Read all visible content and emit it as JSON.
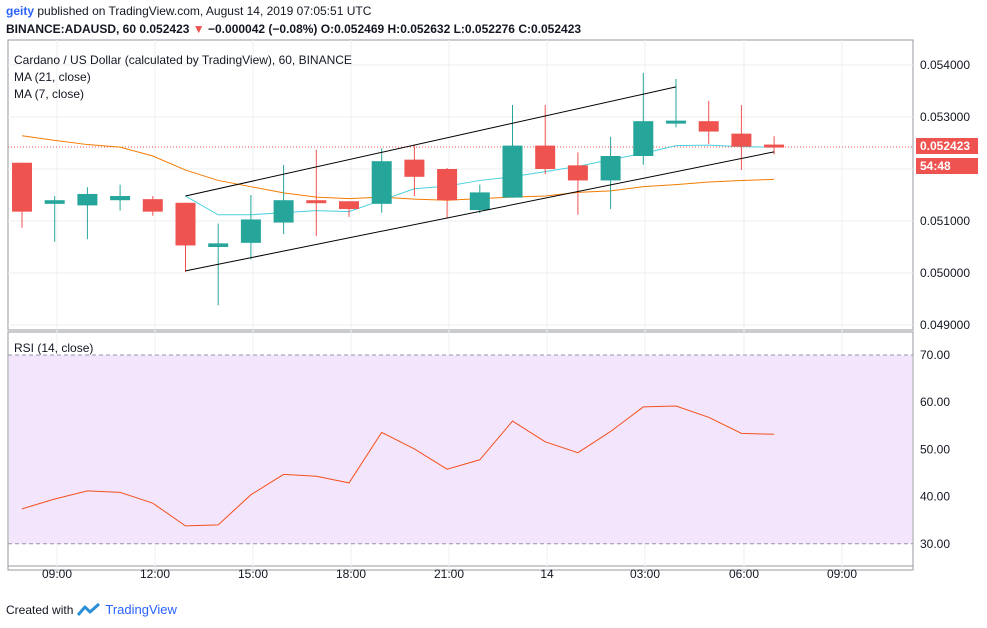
{
  "header": {
    "publisher": "geity",
    "published_text": "published on TradingView.com, August 14, 2019 07:05:51 UTC",
    "symbol": "BINANCE:ADAUSD, 60",
    "last": "0.052423",
    "change_arrow": "▼",
    "change": "−0.000042 (−0.08%)",
    "o_label": "O:",
    "o": "0.052469",
    "h_label": "H:",
    "h": "0.052632",
    "l_label": "L:",
    "l": "0.052276",
    "c_label": "C:",
    "c": "0.052423"
  },
  "legend": {
    "title": "Cardano / US Dollar (calculated by TradingView), 60, BINANCE",
    "ma21": "MA (21, close)",
    "ma7": "MA (7, close)"
  },
  "rsi_label": "RSI (14, close)",
  "price_tag": "0.052423",
  "countdown_tag": "54:48",
  "colors": {
    "up": "#26a69a",
    "down": "#ef5350",
    "ma21": "#f57c00",
    "ma7": "#4dd0e1",
    "rsi_line": "#f4511e",
    "rsi_band": "#f3e5fb",
    "axis_text": "#131722",
    "channel": "#000000"
  },
  "footer": {
    "created_with": "Created with",
    "brand": "TradingView"
  },
  "chart_data": [
    {
      "type": "candlestick",
      "title": "Cardano / US Dollar (calculated by TradingView), 60, BINANCE",
      "x_ticks": [
        "09:00",
        "12:00",
        "15:00",
        "18:00",
        "21:00",
        "14",
        "03:00",
        "06:00",
        "09:00"
      ],
      "y_ticks": [
        "0.054000",
        "0.053000",
        "0.051000",
        "0.050000",
        "0.049000"
      ],
      "ylim": [
        0.0487,
        0.0544
      ],
      "last_price": 0.052423,
      "candles": [
        {
          "o": 0.05212,
          "h": 0.05212,
          "l": 0.05087,
          "c": 0.05118
        },
        {
          "o": 0.05133,
          "h": 0.05148,
          "l": 0.0506,
          "c": 0.0514
        },
        {
          "o": 0.0513,
          "h": 0.05165,
          "l": 0.05065,
          "c": 0.05152
        },
        {
          "o": 0.0514,
          "h": 0.0517,
          "l": 0.0512,
          "c": 0.05148
        },
        {
          "o": 0.05142,
          "h": 0.05148,
          "l": 0.0511,
          "c": 0.05118
        },
        {
          "o": 0.05135,
          "h": 0.05135,
          "l": 0.05002,
          "c": 0.05053
        },
        {
          "o": 0.0505,
          "h": 0.05095,
          "l": 0.04938,
          "c": 0.05057
        },
        {
          "o": 0.05058,
          "h": 0.0515,
          "l": 0.05026,
          "c": 0.05103
        },
        {
          "o": 0.05097,
          "h": 0.05208,
          "l": 0.05075,
          "c": 0.0514
        },
        {
          "o": 0.0514,
          "h": 0.05237,
          "l": 0.05071,
          "c": 0.05135
        },
        {
          "o": 0.05138,
          "h": 0.05138,
          "l": 0.05108,
          "c": 0.05123
        },
        {
          "o": 0.05133,
          "h": 0.0524,
          "l": 0.05116,
          "c": 0.05215
        },
        {
          "o": 0.05218,
          "h": 0.05247,
          "l": 0.05148,
          "c": 0.05185
        },
        {
          "o": 0.052,
          "h": 0.05202,
          "l": 0.05105,
          "c": 0.0514
        },
        {
          "o": 0.05121,
          "h": 0.0517,
          "l": 0.05115,
          "c": 0.05155
        },
        {
          "o": 0.05145,
          "h": 0.05323,
          "l": 0.05145,
          "c": 0.05245
        },
        {
          "o": 0.05245,
          "h": 0.05323,
          "l": 0.0519,
          "c": 0.052
        },
        {
          "o": 0.05207,
          "h": 0.05232,
          "l": 0.05112,
          "c": 0.05178
        },
        {
          "o": 0.05178,
          "h": 0.05262,
          "l": 0.05123,
          "c": 0.05225
        },
        {
          "o": 0.05225,
          "h": 0.05385,
          "l": 0.05208,
          "c": 0.05292
        },
        {
          "o": 0.05293,
          "h": 0.05373,
          "l": 0.0528,
          "c": 0.05293
        },
        {
          "o": 0.05292,
          "h": 0.05331,
          "l": 0.05248,
          "c": 0.05272
        },
        {
          "o": 0.05268,
          "h": 0.05323,
          "l": 0.05198,
          "c": 0.05243
        },
        {
          "o": 0.05247,
          "h": 0.05263,
          "l": 0.05228,
          "c": 0.05242
        }
      ],
      "ma21": [
        0.05264,
        0.05255,
        0.05247,
        0.05242,
        0.05225,
        0.05198,
        0.05178,
        0.05166,
        0.05154,
        0.05146,
        0.05143,
        0.05146,
        0.05142,
        0.0514,
        0.05143,
        0.05146,
        0.05148,
        0.05155,
        0.05158,
        0.05166,
        0.0517,
        0.05175,
        0.05178,
        0.0518
      ],
      "ma7": [
        null,
        null,
        null,
        null,
        null,
        0.05148,
        0.05112,
        0.05112,
        0.05116,
        0.0512,
        0.05118,
        0.0514,
        0.05162,
        0.05167,
        0.05178,
        0.05185,
        0.05195,
        0.05205,
        0.05218,
        0.0523,
        0.05245,
        0.05246,
        0.05243,
        0.05242
      ],
      "channel": [
        {
          "from": [
            5,
            0.05148
          ],
          "to": [
            20,
            0.05358
          ]
        },
        {
          "from": [
            5,
            0.05004
          ],
          "to": [
            23,
            0.05233
          ]
        }
      ]
    },
    {
      "type": "line",
      "title": "RSI (14, close)",
      "y_ticks": [
        "70.00",
        "60.00",
        "50.00",
        "40.00",
        "30.00"
      ],
      "ylim": [
        26,
        73
      ],
      "band": [
        30,
        70
      ],
      "series": [
        {
          "values": [
            37.4,
            39.5,
            41.2,
            40.9,
            38.6,
            33.8,
            34.0,
            40.4,
            44.7,
            44.3,
            42.9,
            53.6,
            50.1,
            45.8,
            47.8,
            56.0,
            51.6,
            49.3,
            53.8,
            59.0,
            59.2,
            56.8,
            53.4,
            53.2
          ]
        }
      ]
    }
  ]
}
